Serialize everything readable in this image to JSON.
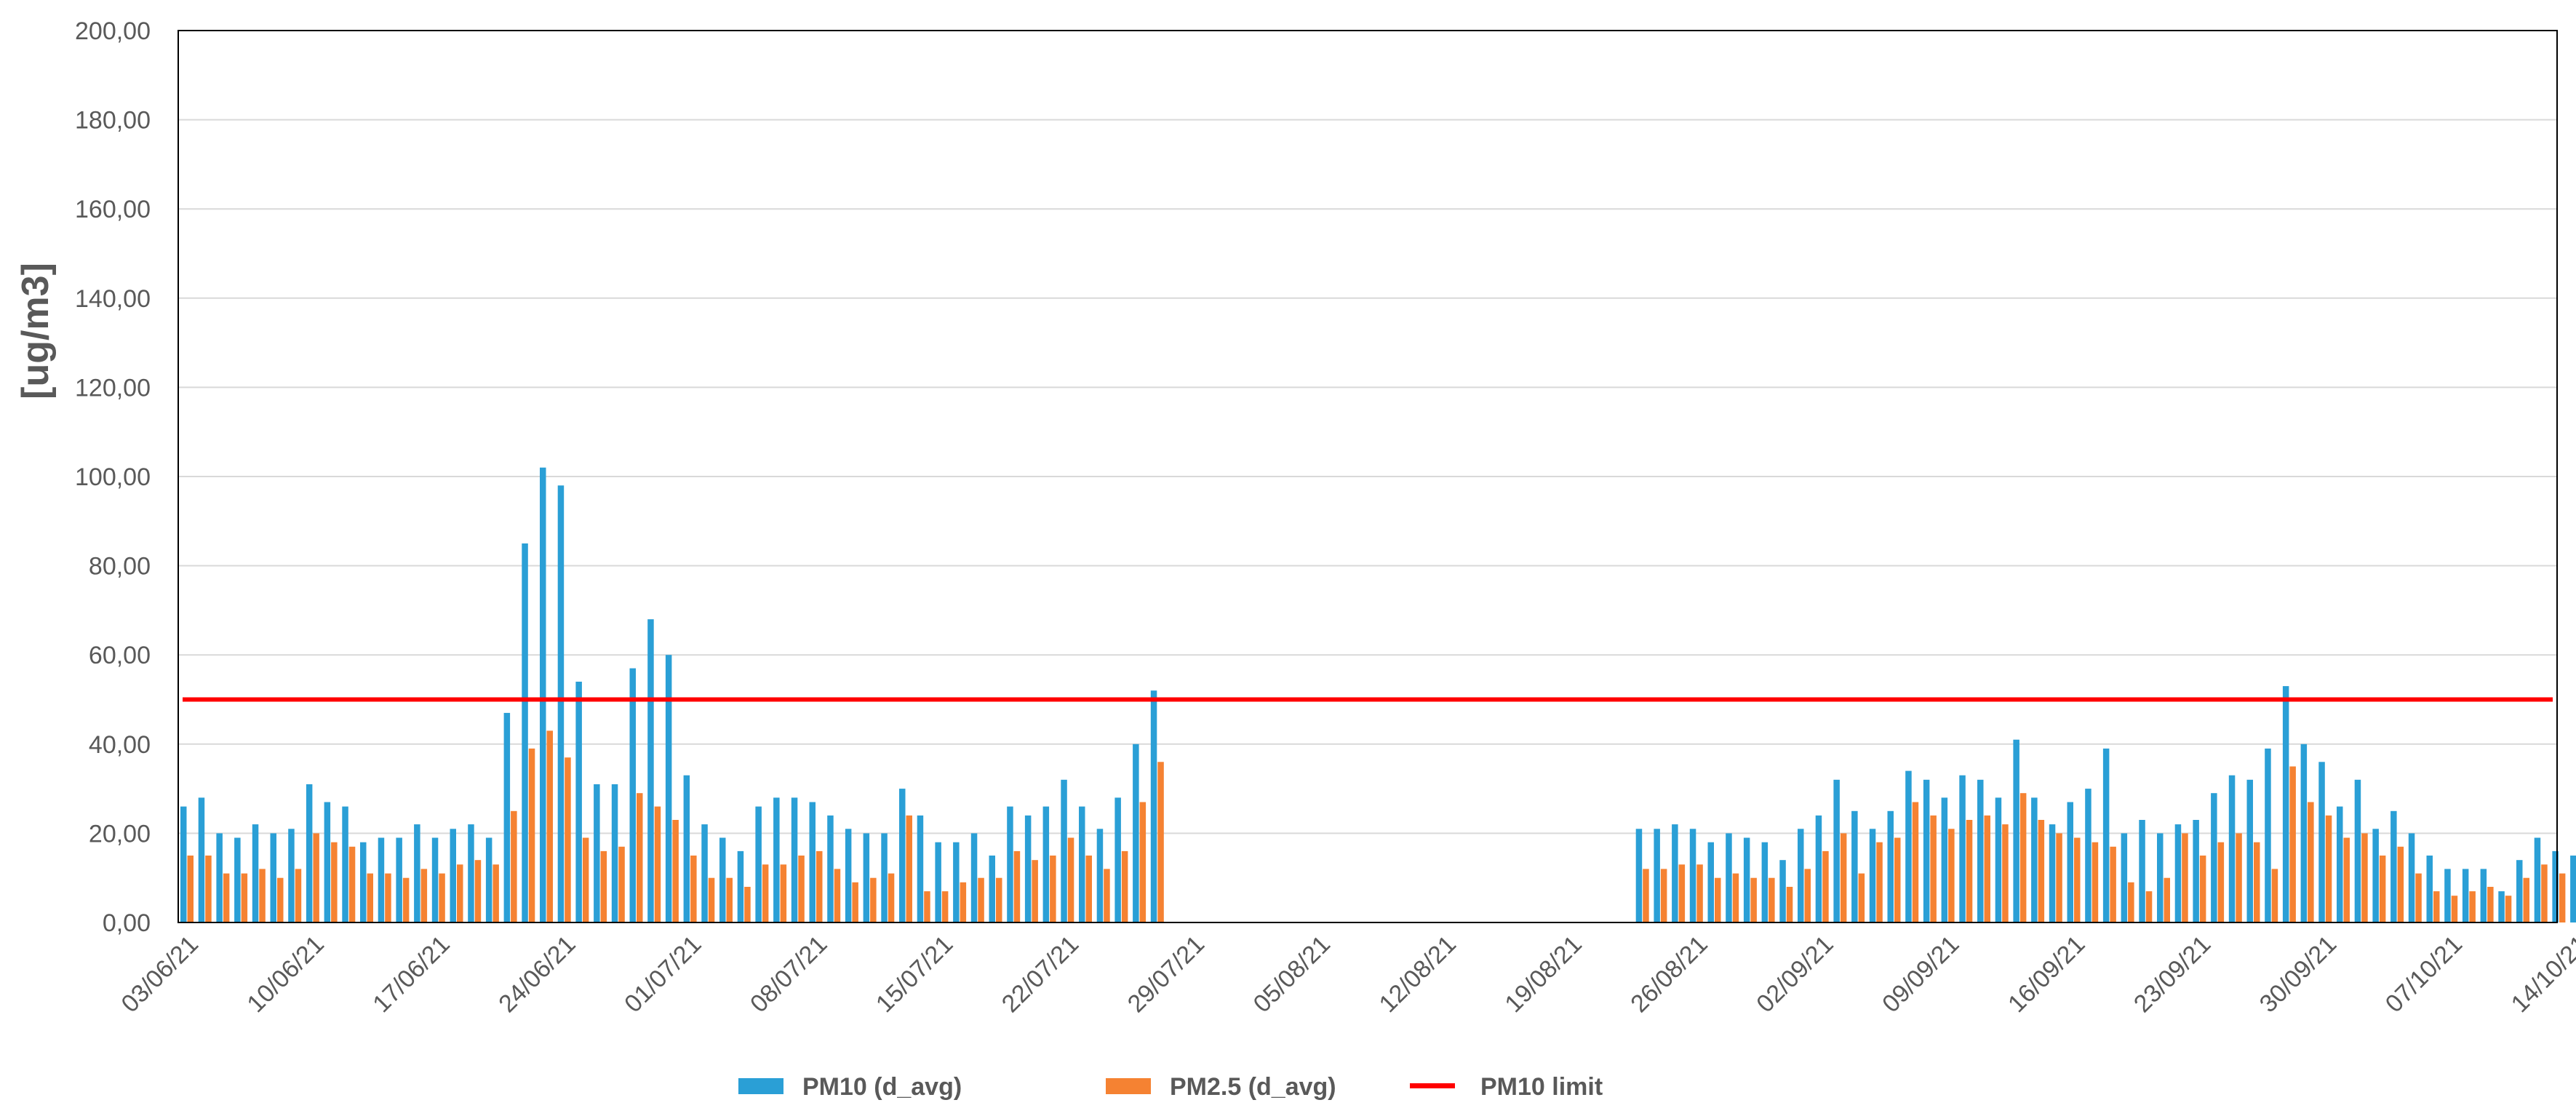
{
  "chart_data": {
    "type": "bar",
    "ylabel": "[ug/m3]",
    "ylim": [
      0,
      200
    ],
    "y_ticks": [
      "0,00",
      "20,00",
      "40,00",
      "60,00",
      "80,00",
      "100,00",
      "120,00",
      "140,00",
      "160,00",
      "180,00",
      "200,00"
    ],
    "x_tick_labels": [
      "03/06/21",
      "10/06/21",
      "17/06/21",
      "24/06/21",
      "01/07/21",
      "08/07/21",
      "15/07/21",
      "22/07/21",
      "29/07/21",
      "05/08/21",
      "12/08/21",
      "19/08/21",
      "26/08/21",
      "02/09/21",
      "09/09/21",
      "16/09/21",
      "23/09/21",
      "30/09/21",
      "07/10/21",
      "14/10/21"
    ],
    "start_date": "03/06/21",
    "grid": "horizontal",
    "legend_position": "bottom",
    "colors": {
      "pm10": "#2a9fd6",
      "pm25": "#f58232",
      "limit": "#ff0000",
      "grid": "#d9d9d9",
      "axis": "#000000"
    },
    "limit": {
      "name": "PM10  limit",
      "value": 50
    },
    "series": [
      {
        "name": "PM10 (d_avg)",
        "values": [
          26,
          28,
          20,
          19,
          22,
          20,
          21,
          31,
          27,
          26,
          18,
          19,
          19,
          22,
          19,
          21,
          22,
          19,
          47,
          85,
          102,
          98,
          54,
          31,
          31,
          57,
          68,
          60,
          33,
          22,
          19,
          16,
          26,
          28,
          28,
          27,
          24,
          21,
          20,
          20,
          30,
          24,
          18,
          18,
          20,
          15,
          26,
          24,
          26,
          32,
          26,
          21,
          28,
          40,
          52,
          null,
          null,
          null,
          null,
          null,
          null,
          null,
          null,
          null,
          null,
          null,
          null,
          null,
          null,
          null,
          null,
          null,
          null,
          null,
          null,
          null,
          null,
          null,
          null,
          null,
          null,
          21,
          21,
          22,
          21,
          18,
          20,
          19,
          18,
          14,
          21,
          24,
          32,
          25,
          21,
          25,
          34,
          32,
          28,
          33,
          32,
          28,
          41,
          28,
          22,
          27,
          30,
          39,
          20,
          23,
          20,
          22,
          23,
          29,
          33,
          32,
          39,
          53,
          40,
          36,
          26,
          32,
          21,
          25,
          20,
          15,
          12,
          12,
          12,
          7,
          14,
          19,
          16,
          15
        ],
        "comment": "PM10 values only",
        "_k": "pm10"
      },
      {
        "name": "PM2.5 (d_avg)",
        "values": [
          15,
          15,
          11,
          11,
          12,
          10,
          12,
          20,
          18,
          17,
          11,
          11,
          10,
          12,
          11,
          13,
          14,
          13,
          25,
          39,
          43,
          37,
          19,
          16,
          17,
          29,
          26,
          23,
          15,
          10,
          10,
          8,
          13,
          13,
          15,
          16,
          12,
          9,
          10,
          11,
          24,
          7,
          7,
          9,
          10,
          10,
          16,
          14,
          15,
          19,
          15,
          12,
          16,
          27,
          36,
          null,
          null,
          null,
          null,
          null,
          null,
          null,
          null,
          null,
          null,
          null,
          null,
          null,
          null,
          null,
          null,
          null,
          null,
          null,
          null,
          null,
          null,
          null,
          null,
          null,
          null,
          12,
          12,
          13,
          13,
          10,
          11,
          10,
          10,
          8,
          12,
          16,
          20,
          11,
          18,
          19,
          27,
          24,
          21,
          23,
          24,
          22,
          29,
          23,
          20,
          19,
          18,
          17,
          9,
          7,
          10,
          20,
          15,
          18,
          20,
          18,
          12,
          35,
          27,
          24,
          19,
          20,
          15,
          17,
          11,
          7,
          6,
          7,
          8,
          6,
          10,
          13,
          11,
          13
        ],
        "_k": "pm25"
      }
    ]
  }
}
